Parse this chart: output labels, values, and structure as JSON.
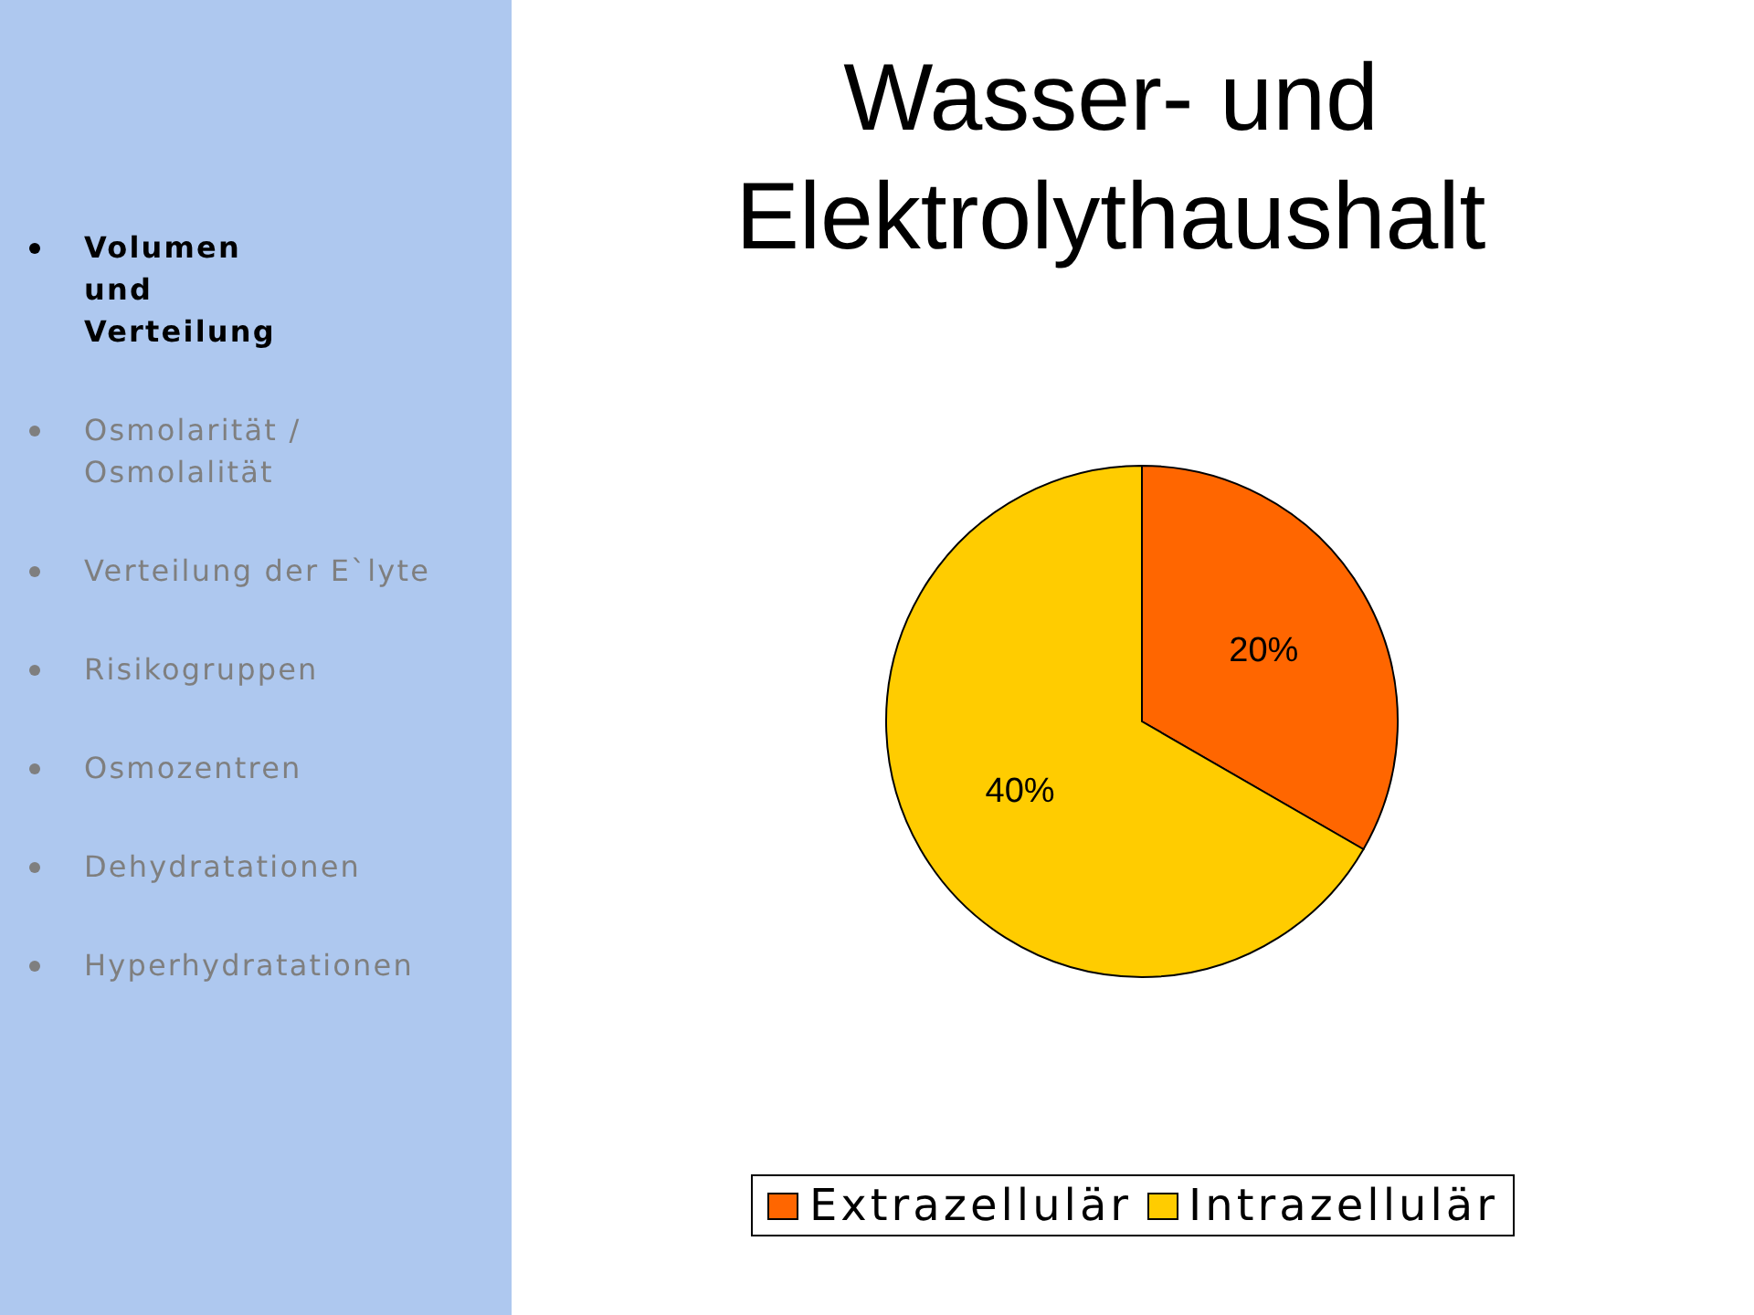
{
  "chart_data": [
    {
      "type": "other",
      "annotations": [
        "Volumen und Verteilung",
        "Osmolarität / Osmolalität",
        "Verteilung der E`lyte",
        "Risikogruppen",
        "Osmozentren",
        "Dehydratationen",
        "Hyperhydratationen"
      ]
    },
    {
      "type": "pie",
      "title": "Wasser- und Elektrolythaushalt",
      "categories": [
        "Extrazellulär",
        "Intrazellulär"
      ],
      "values": [
        20,
        40
      ],
      "colors": [
        "#ff6600",
        "#ffcc00"
      ],
      "value_labels": [
        "20%",
        "40%"
      ],
      "legend": "bottom"
    }
  ]
}
